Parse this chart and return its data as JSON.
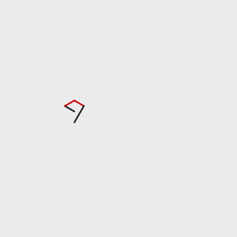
{
  "bg_color": "#ebebeb",
  "bond_color": "#1a1a1a",
  "o_color": "#cc0000",
  "n_color": "#0000cc",
  "h_color": "#4a9999",
  "figsize": [
    3.0,
    3.0
  ],
  "dpi": 100,
  "lw": 1.4,
  "sep": 0.07
}
